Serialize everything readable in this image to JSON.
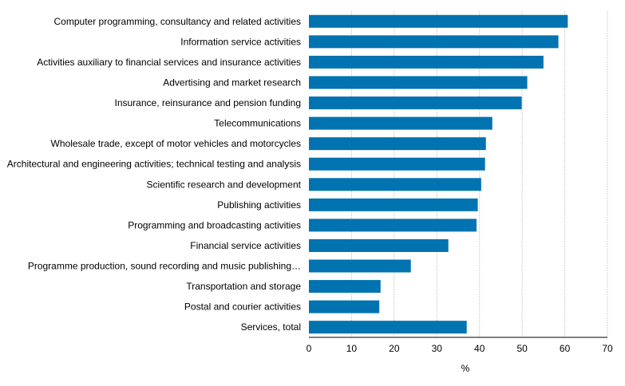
{
  "chart_data": {
    "type": "bar",
    "orientation": "horizontal",
    "categories": [
      "Computer programming, consultancy and related activities",
      "Information service activities",
      "Activities auxiliary to financial services and insurance activities",
      "Advertising and market research",
      "Insurance, reinsurance and pension funding",
      "Telecommunications",
      "Wholesale trade, except of motor vehicles and motorcycles",
      "Architectural and engineering activities; technical testing and analysis",
      "Scientific research and development",
      "Publishing activities",
      "Programming and broadcasting activities",
      "Financial service activities",
      "Programme production, sound recording and music publishing…",
      "Transportation and storage",
      "Postal and courier activities",
      "Services, total"
    ],
    "values": [
      60.7,
      58.5,
      55.0,
      51.2,
      49.9,
      43.0,
      41.5,
      41.3,
      40.4,
      39.6,
      39.3,
      32.7,
      23.9,
      16.8,
      16.5,
      37.0
    ],
    "xlabel": "%",
    "xlim": [
      0,
      70
    ],
    "xticks": [
      "0",
      "10",
      "20",
      "30",
      "40",
      "50",
      "60",
      "70"
    ],
    "grid": "vertical",
    "legend": "none",
    "bar_color": "#0073b0",
    "grid_color": "#d0d0d0"
  }
}
